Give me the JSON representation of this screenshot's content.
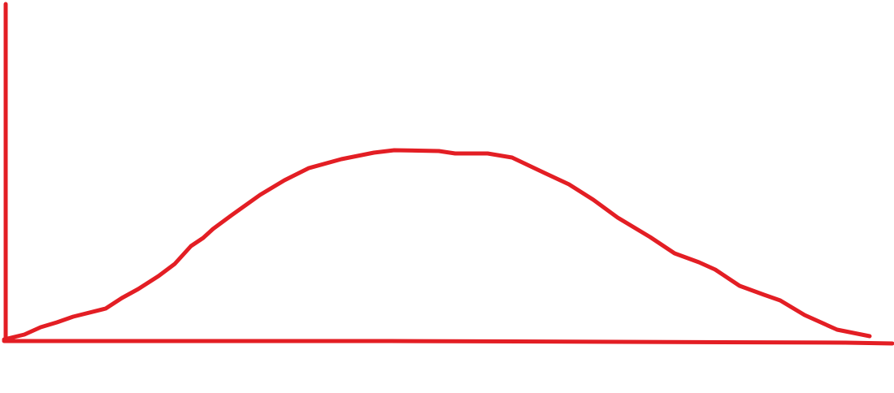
{
  "drawing": {
    "stroke_color": "#e31e24",
    "shape": "bell-curve",
    "axes": [
      "vertical-axis",
      "horizontal-axis"
    ]
  }
}
